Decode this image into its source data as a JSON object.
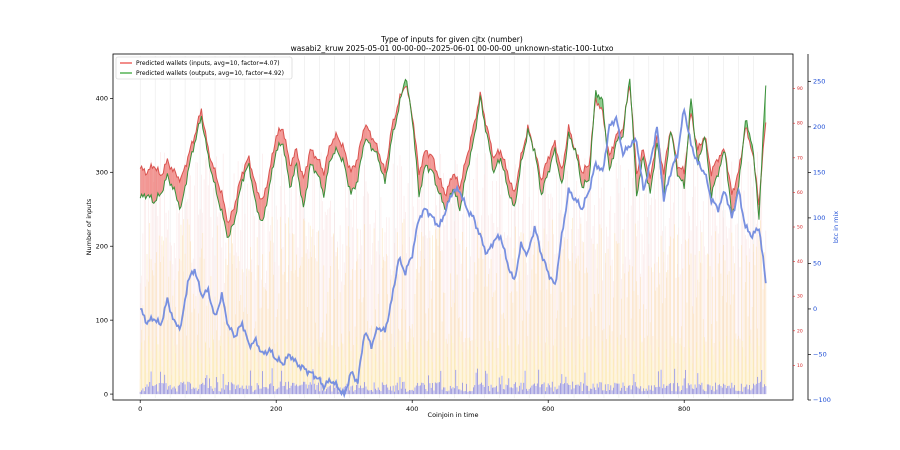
{
  "chart_data": {
    "type": "line",
    "title": "Type of inputs for given cjtx (number)",
    "subtitle": "wasabi2_kruw 2025-05-01 00-00-00--2025-06-01 00-00-00_unknown-static-100-1utxo",
    "xlabel": "Coinjoin in time",
    "ylabel": "Number of inputs",
    "y2label": "btc in mix",
    "xlim": [
      -40,
      960
    ],
    "ylim": [
      -8,
      460
    ],
    "y2lim": [
      -100,
      280
    ],
    "y3lim": [
      0,
      100
    ],
    "x_ticks": [
      0,
      200,
      400,
      600,
      800
    ],
    "y_ticks": [
      0,
      100,
      200,
      300,
      400
    ],
    "y2_ticks": [
      -100,
      -50,
      0,
      50,
      100,
      150,
      200,
      250
    ],
    "y3_ticks": [
      10,
      20,
      30,
      40,
      50,
      60,
      70,
      80,
      90
    ],
    "legend": [
      {
        "label": "Predicted wallets (inputs, avg=10, factor=4.07)",
        "color": "#e8413c"
      },
      {
        "label": "Predicted wallets (outputs, avg=10, factor=4.92)",
        "color": "#2ca02c"
      }
    ],
    "legend_position": "top-left",
    "series": [
      {
        "name": "Predicted wallets (inputs, avg=10, factor=4.07)",
        "axis": "left",
        "x": [
          0,
          10,
          20,
          30,
          40,
          50,
          60,
          70,
          80,
          90,
          100,
          110,
          120,
          130,
          140,
          150,
          160,
          170,
          180,
          190,
          200,
          210,
          220,
          230,
          240,
          250,
          260,
          270,
          280,
          290,
          300,
          310,
          320,
          330,
          340,
          350,
          360,
          370,
          380,
          390,
          400,
          410,
          420,
          430,
          440,
          450,
          460,
          470,
          480,
          490,
          500,
          510,
          520,
          530,
          540,
          550,
          560,
          570,
          580,
          590,
          600,
          610,
          620,
          630,
          640,
          650,
          660,
          670,
          680,
          690,
          700,
          710,
          720,
          730,
          740,
          750,
          760,
          770,
          780,
          790,
          800,
          810,
          820,
          830,
          840,
          850,
          860,
          870,
          880,
          890,
          900,
          910,
          920
        ],
        "values": [
          305,
          300,
          310,
          295,
          315,
          300,
          290,
          320,
          350,
          385,
          330,
          300,
          270,
          230,
          260,
          300,
          320,
          280,
          260,
          300,
          350,
          360,
          310,
          330,
          290,
          330,
          320,
          300,
          340,
          350,
          330,
          300,
          320,
          365,
          350,
          330,
          300,
          360,
          395,
          420,
          380,
          300,
          330,
          320,
          290,
          270,
          300,
          280,
          320,
          360,
          405,
          360,
          320,
          330,
          300,
          270,
          320,
          360,
          330,
          290,
          320,
          340,
          300,
          360,
          330,
          300,
          310,
          400,
          380,
          320,
          350,
          360,
          420,
          300,
          330,
          290,
          350,
          300,
          360,
          310,
          300,
          380,
          330,
          350,
          300,
          320,
          330,
          270,
          300,
          360,
          330,
          260,
          370
        ]
      },
      {
        "name": "Predicted wallets (outputs, avg=10, factor=4.92)",
        "axis": "left",
        "x": [
          0,
          10,
          20,
          30,
          40,
          50,
          60,
          70,
          80,
          90,
          100,
          110,
          120,
          130,
          140,
          150,
          160,
          170,
          180,
          190,
          200,
          210,
          220,
          230,
          240,
          250,
          260,
          270,
          280,
          290,
          300,
          310,
          320,
          330,
          340,
          350,
          360,
          370,
          380,
          390,
          400,
          410,
          420,
          430,
          440,
          450,
          460,
          470,
          480,
          490,
          500,
          510,
          520,
          530,
          540,
          550,
          560,
          570,
          580,
          590,
          600,
          610,
          620,
          630,
          640,
          650,
          660,
          670,
          680,
          690,
          700,
          710,
          720,
          730,
          740,
          750,
          760,
          770,
          780,
          790,
          800,
          810,
          820,
          830,
          840,
          850,
          860,
          870,
          880,
          890,
          900,
          910,
          920
        ],
        "values": [
          265,
          270,
          260,
          270,
          295,
          275,
          250,
          300,
          340,
          375,
          320,
          280,
          245,
          210,
          240,
          290,
          310,
          255,
          230,
          280,
          330,
          340,
          280,
          310,
          250,
          310,
          300,
          270,
          320,
          330,
          310,
          270,
          290,
          345,
          335,
          320,
          285,
          345,
          385,
          430,
          375,
          270,
          310,
          300,
          270,
          250,
          280,
          250,
          300,
          340,
          400,
          350,
          300,
          320,
          280,
          250,
          310,
          355,
          330,
          270,
          300,
          330,
          280,
          350,
          330,
          280,
          290,
          410,
          395,
          300,
          340,
          350,
          430,
          270,
          320,
          270,
          340,
          270,
          360,
          300,
          280,
          400,
          310,
          350,
          270,
          300,
          330,
          240,
          280,
          370,
          340,
          240,
          420
        ]
      },
      {
        "name": "",
        "axis": "right",
        "x": [
          0,
          10,
          20,
          30,
          40,
          50,
          60,
          70,
          80,
          90,
          100,
          110,
          120,
          130,
          140,
          150,
          160,
          170,
          180,
          190,
          200,
          210,
          220,
          230,
          240,
          250,
          260,
          270,
          280,
          290,
          300,
          310,
          320,
          330,
          340,
          350,
          360,
          370,
          380,
          390,
          400,
          410,
          420,
          430,
          440,
          450,
          460,
          470,
          480,
          490,
          500,
          510,
          520,
          530,
          540,
          550,
          560,
          570,
          580,
          590,
          600,
          610,
          620,
          630,
          640,
          650,
          660,
          670,
          680,
          690,
          700,
          710,
          720,
          730,
          740,
          750,
          760,
          770,
          780,
          790,
          800,
          810,
          820,
          830,
          840,
          850,
          860,
          870,
          880,
          890,
          900,
          910,
          920
        ],
        "values": [
          0,
          -15,
          -10,
          -18,
          10,
          -15,
          -20,
          30,
          44,
          15,
          20,
          -10,
          15,
          -20,
          -30,
          -15,
          -40,
          -35,
          -50,
          -45,
          -55,
          -60,
          -50,
          -60,
          -65,
          -70,
          -75,
          -85,
          -78,
          -85,
          -95,
          -70,
          -80,
          -25,
          -40,
          -20,
          -25,
          10,
          55,
          40,
          60,
          100,
          110,
          100,
          90,
          110,
          130,
          130,
          110,
          100,
          80,
          60,
          75,
          80,
          50,
          30,
          70,
          60,
          90,
          60,
          40,
          25,
          80,
          130,
          120,
          110,
          130,
          160,
          150,
          200,
          210,
          170,
          180,
          185,
          130,
          160,
          200,
          120,
          150,
          170,
          220,
          180,
          160,
          150,
          120,
          110,
          130,
          100,
          130,
          90,
          80,
          90,
          30
        ]
      }
    ]
  }
}
